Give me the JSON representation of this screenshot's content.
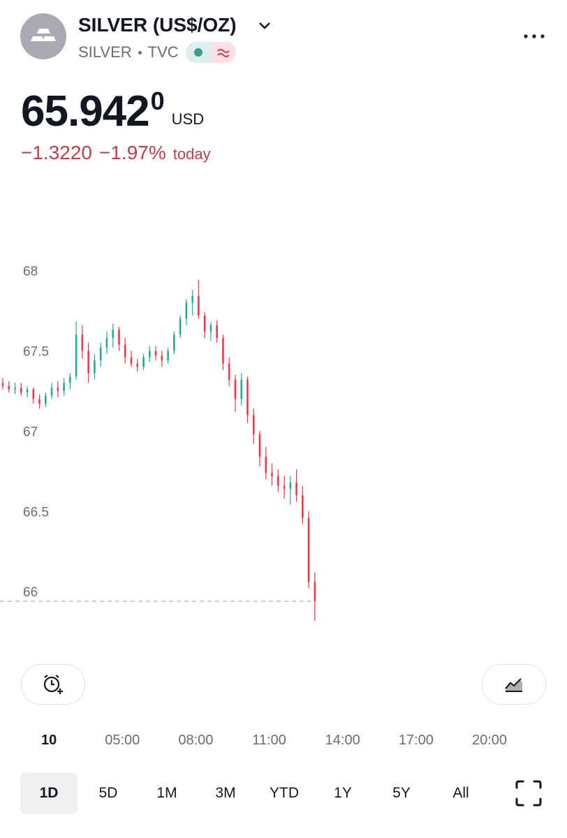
{
  "header": {
    "title": "SILVER (US$/OZ)",
    "symbol": "SILVER",
    "exchange": "TVC"
  },
  "quote": {
    "price": "65.942",
    "price_last_digit": "0",
    "currency": "USD",
    "change": "−1.3220",
    "change_percent": "−1.97%",
    "period": "today"
  },
  "chart_data": {
    "type": "candlestick",
    "x": [
      "00:00",
      "00:15",
      "00:30",
      "00:45",
      "01:00",
      "01:15",
      "01:30",
      "01:45",
      "02:00",
      "02:15",
      "02:30",
      "02:45",
      "03:00",
      "03:15",
      "03:30",
      "03:45",
      "04:00",
      "04:15",
      "04:30",
      "04:45",
      "05:00",
      "05:15",
      "05:30",
      "05:45",
      "06:00",
      "06:15",
      "06:30",
      "06:45",
      "07:00",
      "07:15",
      "07:30",
      "07:45",
      "08:00",
      "08:15",
      "08:30",
      "08:45",
      "09:00",
      "09:15",
      "09:30",
      "09:45",
      "10:00",
      "10:15",
      "10:30",
      "10:45",
      "11:00",
      "11:15",
      "11:30",
      "11:45",
      "12:00",
      "12:15",
      "12:30",
      "12:45"
    ],
    "open": [
      67.3,
      67.28,
      67.26,
      67.27,
      67.24,
      67.26,
      67.2,
      67.17,
      67.22,
      67.27,
      67.25,
      67.3,
      67.34,
      67.6,
      67.5,
      67.36,
      67.44,
      67.52,
      67.58,
      67.63,
      67.54,
      67.46,
      67.42,
      67.4,
      67.46,
      67.5,
      67.47,
      67.44,
      67.5,
      67.6,
      67.7,
      67.8,
      67.84,
      67.72,
      67.62,
      67.66,
      67.58,
      67.42,
      67.32,
      67.2,
      67.32,
      67.1,
      66.98,
      66.84,
      66.74,
      66.72,
      66.66,
      66.64,
      66.68,
      66.6,
      66.46,
      66.06
    ],
    "high": [
      67.33,
      67.31,
      67.3,
      67.3,
      67.28,
      67.27,
      67.23,
      67.24,
      67.3,
      67.31,
      67.33,
      67.36,
      67.68,
      67.66,
      67.55,
      67.48,
      67.55,
      67.62,
      67.67,
      67.65,
      67.58,
      67.5,
      67.45,
      67.48,
      67.53,
      67.53,
      67.5,
      67.52,
      67.62,
      67.72,
      67.82,
      67.88,
      67.94,
      67.74,
      67.68,
      67.69,
      67.6,
      67.46,
      67.35,
      67.36,
      67.34,
      67.14,
      67.0,
      66.9,
      66.8,
      66.76,
      66.72,
      66.72,
      66.76,
      66.66,
      66.5,
      66.12
    ],
    "low": [
      67.26,
      67.24,
      67.23,
      67.22,
      67.21,
      67.17,
      67.14,
      67.15,
      67.2,
      67.21,
      67.22,
      67.26,
      67.32,
      67.45,
      67.3,
      67.32,
      67.4,
      67.48,
      67.52,
      67.5,
      67.42,
      67.4,
      67.37,
      67.38,
      67.43,
      67.44,
      67.4,
      67.42,
      67.48,
      67.58,
      67.66,
      67.72,
      67.7,
      67.58,
      67.56,
      67.55,
      67.38,
      67.28,
      67.12,
      67.16,
      67.05,
      66.92,
      66.78,
      66.7,
      66.66,
      66.62,
      66.58,
      66.54,
      66.56,
      66.42,
      66.02,
      65.82
    ],
    "close": [
      67.28,
      67.26,
      67.27,
      67.24,
      67.26,
      67.2,
      67.17,
      67.22,
      67.27,
      67.25,
      67.3,
      67.34,
      67.6,
      67.5,
      67.36,
      67.44,
      67.52,
      67.58,
      67.63,
      67.54,
      67.46,
      67.42,
      67.4,
      67.46,
      67.5,
      67.47,
      67.44,
      67.5,
      67.6,
      67.7,
      67.8,
      67.84,
      67.72,
      67.62,
      67.66,
      67.58,
      67.42,
      67.32,
      67.2,
      67.32,
      67.1,
      66.98,
      66.84,
      66.74,
      66.72,
      66.66,
      66.64,
      66.68,
      66.6,
      66.46,
      66.06,
      65.94
    ],
    "up_color": "#22ab94",
    "down_color": "#f23645",
    "ylim": [
      65.64,
      68.38
    ],
    "yticks": [
      66,
      66.5,
      67,
      67.5,
      68
    ],
    "xlim": [
      "00:00",
      "23:10"
    ],
    "xticks": [
      {
        "value": "02:00",
        "label": "10"
      },
      "05:00",
      "08:00",
      "11:00",
      "14:00",
      "17:00",
      "20:00"
    ],
    "last_price_line": true
  },
  "range_tabs": {
    "options": [
      "1D",
      "5D",
      "1M",
      "3M",
      "YTD",
      "1Y",
      "5Y",
      "All"
    ],
    "selected": 0
  }
}
